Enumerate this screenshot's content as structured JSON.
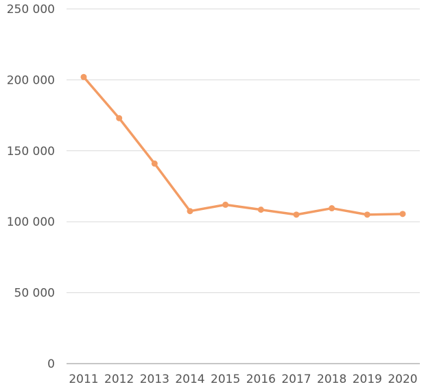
{
  "chart_data": {
    "type": "line",
    "title": "",
    "xlabel": "",
    "ylabel": "",
    "x": [
      "2011",
      "2012",
      "2013",
      "2014",
      "2015",
      "2016",
      "2017",
      "2018",
      "2019",
      "2020"
    ],
    "series": [
      {
        "values": [
          202000,
          173000,
          141000,
          107500,
          112000,
          108500,
          105000,
          109500,
          105000,
          105500
        ],
        "color": "#f39c64"
      }
    ],
    "ylim": [
      0,
      250000
    ],
    "yticks": [
      0,
      50000,
      100000,
      150000,
      200000,
      250000
    ],
    "ytick_labels": [
      "0",
      "50 000",
      "100 000",
      "150 000",
      "200 000",
      "250 000"
    ],
    "grid": true,
    "legend": "none"
  }
}
